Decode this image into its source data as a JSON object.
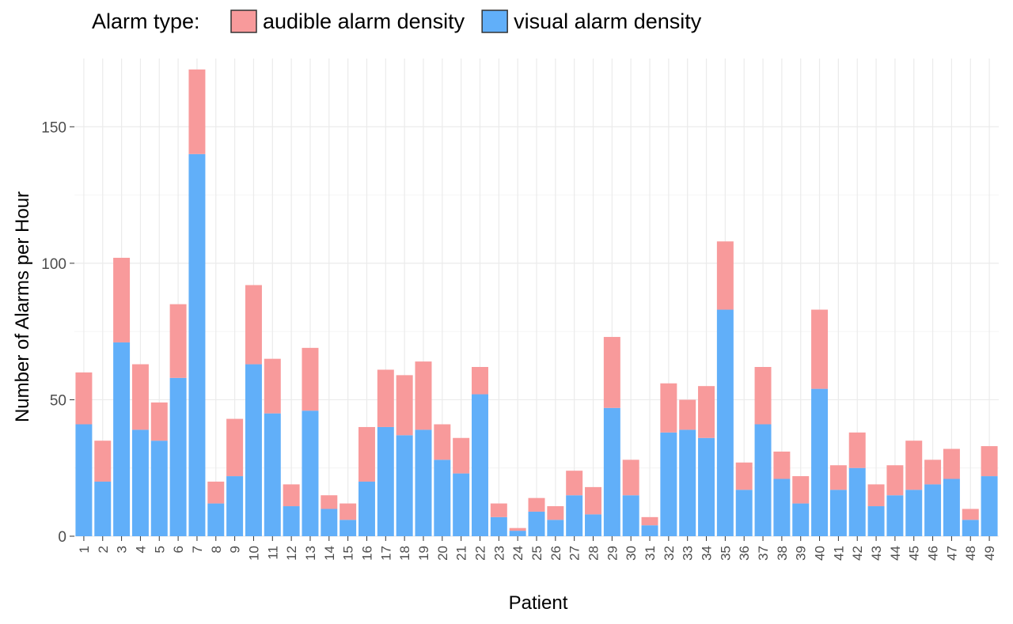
{
  "chart_data": {
    "type": "bar",
    "stacked": true,
    "title": "",
    "xlabel": "Patient",
    "ylabel": "Number of Alarms per Hour",
    "ylim": [
      0,
      175
    ],
    "yticks": [
      0,
      50,
      100,
      150
    ],
    "grid": true,
    "legend": {
      "title": "Alarm type:",
      "position": "top"
    },
    "categories": [
      "1",
      "2",
      "3",
      "4",
      "5",
      "6",
      "7",
      "8",
      "9",
      "10",
      "11",
      "12",
      "13",
      "14",
      "15",
      "16",
      "17",
      "18",
      "19",
      "20",
      "21",
      "22",
      "23",
      "24",
      "25",
      "26",
      "27",
      "28",
      "29",
      "30",
      "31",
      "32",
      "33",
      "34",
      "35",
      "36",
      "37",
      "38",
      "39",
      "40",
      "41",
      "42",
      "43",
      "44",
      "45",
      "46",
      "47",
      "48",
      "49"
    ],
    "series": [
      {
        "name": "visual alarm density",
        "color": "#61aff9",
        "values": [
          41,
          20,
          71,
          39,
          35,
          58,
          140,
          12,
          22,
          63,
          45,
          11,
          46,
          10,
          6,
          20,
          40,
          37,
          39,
          28,
          23,
          52,
          7,
          2,
          9,
          6,
          15,
          8,
          47,
          15,
          4,
          38,
          39,
          36,
          83,
          17,
          41,
          21,
          12,
          54,
          17,
          25,
          11,
          15,
          17,
          19,
          21,
          6,
          22
        ]
      },
      {
        "name": "audible alarm density",
        "color": "#f89a9b",
        "values": [
          19,
          15,
          31,
          24,
          14,
          27,
          31,
          8,
          21,
          29,
          20,
          8,
          23,
          5,
          6,
          20,
          21,
          22,
          25,
          13,
          13,
          10,
          5,
          1,
          5,
          5,
          9,
          10,
          26,
          13,
          3,
          18,
          11,
          19,
          25,
          10,
          21,
          10,
          10,
          29,
          9,
          13,
          8,
          11,
          18,
          9,
          11,
          4,
          11
        ]
      }
    ]
  }
}
